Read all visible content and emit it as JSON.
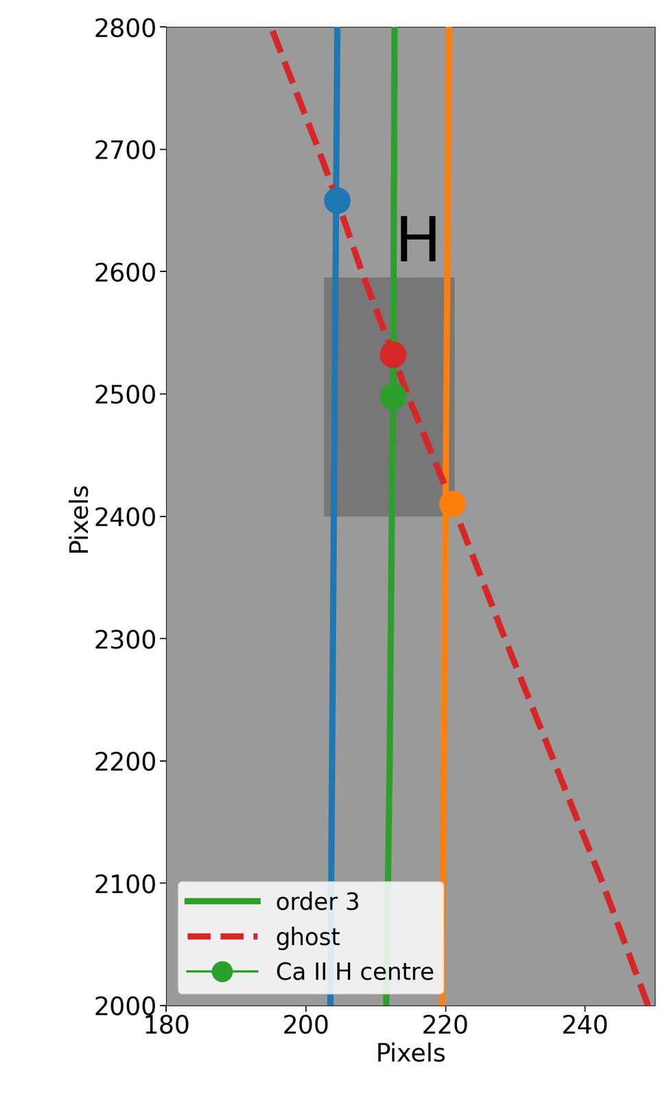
{
  "chart_data": {
    "type": "line",
    "x_label": "Pixels",
    "y_label": "Pixels",
    "xlim": [
      180,
      250
    ],
    "xticks": [
      180,
      200,
      220,
      240
    ],
    "ylim": [
      2000,
      2800
    ],
    "yticks": [
      2000,
      2100,
      2200,
      2300,
      2400,
      2500,
      2600,
      2700,
      2800
    ],
    "legend": "lower left",
    "shaded_region": {
      "x": [
        202.6,
        221.3
      ],
      "y": [
        2400,
        2595
      ]
    },
    "annotations": [
      {
        "text": "H",
        "x": 216,
        "y": 2623
      }
    ],
    "series": [
      {
        "color": "#1f77b4",
        "type": "line",
        "line_style": "solid",
        "x": [
          203.5,
          204.5
        ],
        "y": [
          2000,
          2800
        ]
      },
      {
        "color": "#ff7f0e",
        "type": "line",
        "line_style": "solid",
        "x": [
          219.5,
          220.5
        ],
        "y": [
          2000,
          2800
        ]
      },
      {
        "name": "order 3",
        "color": "#2ca02c",
        "type": "line",
        "line_style": "solid",
        "x": [
          211.5,
          212.0,
          212.3,
          212.5,
          212.6,
          212.7
        ],
        "y": [
          2000,
          2200,
          2400,
          2500,
          2650,
          2800
        ]
      },
      {
        "name": "ghost",
        "color": "#d62728",
        "type": "line",
        "line_style": "dashed",
        "x": [
          249,
          242.5,
          235.5,
          228.5,
          221,
          214.5,
          212.5,
          208,
          204.5,
          201.8,
          195
        ],
        "y": [
          2000,
          2100,
          2200,
          2300,
          2410,
          2500,
          2532,
          2600,
          2658,
          2700,
          2800
        ]
      },
      {
        "name": "Ca II H centre",
        "color": "#2ca02c",
        "type": "scatter",
        "marker": "o",
        "colors": [
          "#1f77b4",
          "#d62728",
          "#2ca02c",
          "#ff7f0e"
        ],
        "x": [
          204.5,
          212.5,
          212.5,
          221
        ],
        "y": [
          2658,
          2532,
          2498,
          2410
        ]
      }
    ]
  }
}
